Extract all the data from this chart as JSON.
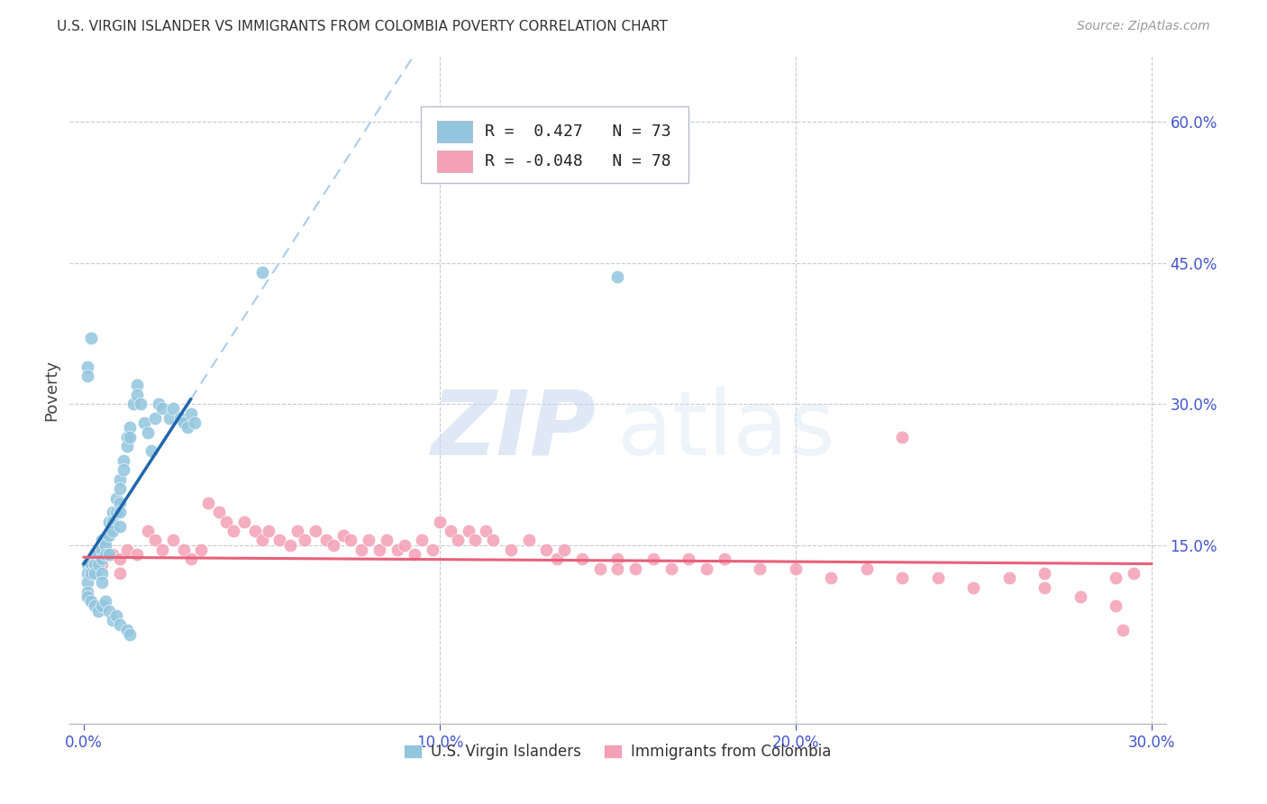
{
  "title": "U.S. VIRGIN ISLANDER VS IMMIGRANTS FROM COLOMBIA POVERTY CORRELATION CHART",
  "source": "Source: ZipAtlas.com",
  "ylabel": "Poverty",
  "legend1_R": "0.427",
  "legend1_N": "73",
  "legend2_R": "-0.048",
  "legend2_N": "78",
  "blue_color": "#92c5de",
  "pink_color": "#f4a0b5",
  "blue_line_color": "#2166ac",
  "pink_line_color": "#e8607a",
  "dashed_line_color": "#aaccee",
  "grid_color": "#c8c8d8",
  "right_tick_color": "#4455cc",
  "xtick_color": "#4455cc",
  "xlim": [
    0.0,
    0.3
  ],
  "ylim": [
    -0.04,
    0.67
  ],
  "right_ytick_vals": [
    0.15,
    0.3,
    0.45,
    0.6
  ],
  "right_ytick_labels": [
    "15.0%",
    "30.0%",
    "45.0%",
    "60.0%"
  ],
  "xtick_vals": [
    0.0,
    0.1,
    0.2,
    0.3
  ],
  "xtick_labels": [
    "0.0%",
    "10.0%",
    "20.0%",
    "30.0%"
  ],
  "blue_x": [
    0.001,
    0.001,
    0.001,
    0.001,
    0.001,
    0.002,
    0.002,
    0.002,
    0.003,
    0.003,
    0.003,
    0.003,
    0.004,
    0.004,
    0.004,
    0.005,
    0.005,
    0.005,
    0.005,
    0.005,
    0.005,
    0.006,
    0.006,
    0.006,
    0.006,
    0.007,
    0.007,
    0.007,
    0.007,
    0.008,
    0.008,
    0.008,
    0.008,
    0.009,
    0.009,
    0.009,
    0.01,
    0.01,
    0.01,
    0.01,
    0.01,
    0.01,
    0.011,
    0.011,
    0.012,
    0.012,
    0.012,
    0.013,
    0.013,
    0.013,
    0.014,
    0.015,
    0.015,
    0.016,
    0.017,
    0.018,
    0.019,
    0.02,
    0.021,
    0.022,
    0.024,
    0.025,
    0.027,
    0.028,
    0.029,
    0.03,
    0.031,
    0.13,
    0.05,
    0.002,
    0.001,
    0.001,
    0.15
  ],
  "blue_y": [
    0.13,
    0.12,
    0.11,
    0.1,
    0.095,
    0.13,
    0.12,
    0.09,
    0.14,
    0.13,
    0.12,
    0.085,
    0.14,
    0.13,
    0.08,
    0.155,
    0.145,
    0.135,
    0.12,
    0.11,
    0.085,
    0.155,
    0.15,
    0.14,
    0.09,
    0.175,
    0.16,
    0.14,
    0.08,
    0.185,
    0.175,
    0.165,
    0.07,
    0.2,
    0.185,
    0.075,
    0.22,
    0.21,
    0.195,
    0.185,
    0.17,
    0.065,
    0.24,
    0.23,
    0.265,
    0.255,
    0.06,
    0.275,
    0.265,
    0.055,
    0.3,
    0.32,
    0.31,
    0.3,
    0.28,
    0.27,
    0.25,
    0.285,
    0.3,
    0.295,
    0.285,
    0.295,
    0.285,
    0.28,
    0.275,
    0.29,
    0.28,
    0.57,
    0.44,
    0.37,
    0.34,
    0.33,
    0.435
  ],
  "pink_x": [
    0.005,
    0.008,
    0.01,
    0.012,
    0.015,
    0.018,
    0.02,
    0.022,
    0.025,
    0.028,
    0.03,
    0.033,
    0.035,
    0.038,
    0.04,
    0.042,
    0.045,
    0.048,
    0.05,
    0.052,
    0.055,
    0.058,
    0.06,
    0.062,
    0.065,
    0.068,
    0.07,
    0.073,
    0.075,
    0.078,
    0.08,
    0.083,
    0.085,
    0.088,
    0.09,
    0.093,
    0.095,
    0.098,
    0.1,
    0.103,
    0.105,
    0.108,
    0.11,
    0.113,
    0.115,
    0.12,
    0.125,
    0.13,
    0.133,
    0.135,
    0.14,
    0.145,
    0.15,
    0.155,
    0.16,
    0.165,
    0.17,
    0.175,
    0.18,
    0.19,
    0.2,
    0.21,
    0.22,
    0.23,
    0.24,
    0.25,
    0.26,
    0.27,
    0.28,
    0.29,
    0.295,
    0.005,
    0.01,
    0.15,
    0.23,
    0.27,
    0.29,
    0.292
  ],
  "pink_y": [
    0.145,
    0.14,
    0.135,
    0.145,
    0.14,
    0.165,
    0.155,
    0.145,
    0.155,
    0.145,
    0.135,
    0.145,
    0.195,
    0.185,
    0.175,
    0.165,
    0.175,
    0.165,
    0.155,
    0.165,
    0.155,
    0.15,
    0.165,
    0.155,
    0.165,
    0.155,
    0.15,
    0.16,
    0.155,
    0.145,
    0.155,
    0.145,
    0.155,
    0.145,
    0.15,
    0.14,
    0.155,
    0.145,
    0.175,
    0.165,
    0.155,
    0.165,
    0.155,
    0.165,
    0.155,
    0.145,
    0.155,
    0.145,
    0.135,
    0.145,
    0.135,
    0.125,
    0.135,
    0.125,
    0.135,
    0.125,
    0.135,
    0.125,
    0.135,
    0.125,
    0.125,
    0.115,
    0.125,
    0.115,
    0.115,
    0.105,
    0.115,
    0.105,
    0.095,
    0.085,
    0.12,
    0.13,
    0.12,
    0.125,
    0.265,
    0.12,
    0.115,
    0.06
  ]
}
